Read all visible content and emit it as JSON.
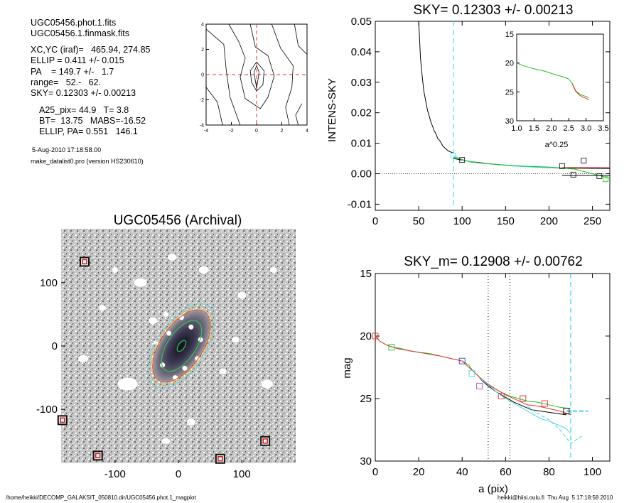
{
  "info": {
    "lines_top": [
      "UGC05456.phot.1.fits",
      "UGC05456.1.finmask.fits"
    ],
    "lines_fit": [
      "XC,YC (iraf)=   465.94, 274.85",
      "ELLIP = 0.411 +/- 0.015",
      "PA    = 149.7 +/-   1.7",
      "range=   52.-   62.",
      "SKY= 0.12303 +/- 0.00213"
    ],
    "lines_gal": [
      "A25_pix= 44.9   T= 3.8",
      "BT=  13.75   MABS=-16.52",
      "ELLIP, PA= 0.551   146.1"
    ],
    "date": "5-Aug-2010 17:18:58.00",
    "program": "make_datalist0.pro (version HS230610)"
  },
  "footer": {
    "left": "/home/heikki/DECOMP_GALAKSIT_050810.dir/UGC05456.phot.1_magplot",
    "right": "heikki@hiisi.oulu.fi  Thu Aug  5 17:18:58 2010"
  },
  "chart_data": [
    {
      "id": "center-contour",
      "type": "line",
      "title": "",
      "xlim": [
        -4,
        4
      ],
      "ylim": [
        -4,
        4
      ],
      "xticks": [
        -4,
        -2,
        0,
        2,
        4
      ],
      "yticks": [
        -4,
        -2,
        0,
        2,
        4
      ],
      "colors": {
        "crosshair": "#e03030",
        "contour": "#000000"
      },
      "contours": [
        [
          [
            0,
            0.7
          ],
          [
            0.2,
            0.2
          ],
          [
            0,
            -1.1
          ],
          [
            -0.2,
            0.2
          ],
          [
            0,
            0.7
          ]
        ],
        [
          [
            0,
            1.0
          ],
          [
            0.6,
            0.3
          ],
          [
            0.5,
            -0.8
          ],
          [
            0,
            -1.3
          ],
          [
            -0.4,
            -0.6
          ],
          [
            -0.5,
            0.3
          ],
          [
            0,
            1.0
          ]
        ],
        [
          [
            -0.5,
            4
          ],
          [
            -0.1,
            2.2
          ],
          [
            0.9,
            1.5
          ],
          [
            1.4,
            -0.1
          ],
          [
            0.9,
            -1.8
          ],
          [
            0.3,
            -2.7
          ],
          [
            -0.9,
            -1.9
          ],
          [
            -1.3,
            -0.2
          ],
          [
            -0.9,
            1.3
          ],
          [
            -1.4,
            2.6
          ],
          [
            -2.2,
            4
          ]
        ],
        [
          [
            -4,
            3.6
          ],
          [
            -2.6,
            2.4
          ],
          [
            -2.4,
            0.3
          ],
          [
            -2.1,
            -1.8
          ],
          [
            -1.3,
            -4
          ]
        ],
        [
          [
            -4,
            -1.0
          ],
          [
            -3.1,
            -2.2
          ],
          [
            -2.7,
            -4
          ]
        ],
        [
          [
            1.2,
            4
          ],
          [
            1.9,
            2.1
          ],
          [
            2.9,
            0.7
          ],
          [
            2.8,
            -1.0
          ],
          [
            2.3,
            -2.6
          ],
          [
            2.6,
            -4
          ]
        ],
        [
          [
            3.0,
            4
          ],
          [
            3.3,
            2.3
          ],
          [
            4,
            1.6
          ]
        ],
        [
          [
            3.6,
            -2.3
          ],
          [
            3.1,
            -3.2
          ],
          [
            3.3,
            -4
          ]
        ]
      ]
    },
    {
      "id": "sky-profile",
      "type": "line",
      "title": "SKY= 0.12303 +/- 0.00213",
      "xlabel": "",
      "ylabel": "INTENS-SKY",
      "xlim": [
        0,
        270
      ],
      "ylim": [
        -0.012,
        0.05
      ],
      "xticks": [
        0,
        50,
        100,
        150,
        200,
        250
      ],
      "yticks": [
        -0.01,
        0.0,
        0.01,
        0.02,
        0.03,
        0.04,
        0.05
      ],
      "ytick_labels": [
        "-0.01",
        "0.00",
        "0.01",
        "0.02",
        "0.03",
        "0.04",
        "0.05"
      ],
      "sky_vline_x": 90,
      "colors": {
        "main": "#000000",
        "cyan": "#40d8e8",
        "green": "#20c020",
        "red": "#e03030",
        "vline": "#60e0f0"
      },
      "series": [
        {
          "color": "main",
          "x": [
            50,
            52,
            54,
            56,
            58,
            60,
            62,
            64,
            66,
            68,
            70,
            72,
            74,
            76,
            78,
            80,
            82,
            84,
            86,
            88,
            90
          ],
          "y": [
            0.05,
            0.038,
            0.032,
            0.027,
            0.024,
            0.021,
            0.019,
            0.017,
            0.0155,
            0.014,
            0.013,
            0.0115,
            0.011,
            0.01,
            0.009,
            0.0085,
            0.008,
            0.0075,
            0.0072,
            0.007,
            0.0068
          ]
        },
        {
          "color": "main",
          "x": [
            90,
            110,
            130,
            150,
            170,
            190,
            210,
            230,
            270
          ],
          "y": [
            0.005,
            0.004,
            0.0033,
            0.0028,
            0.0024,
            0.0021,
            0.0019,
            0.0018,
            0.0017
          ]
        },
        {
          "color": "cyan",
          "x": [
            90,
            100,
            120,
            140,
            160,
            180,
            200,
            215
          ],
          "y": [
            0.006,
            0.0045,
            0.0035,
            0.003,
            0.0025,
            0.0022,
            0.002,
            0.0019
          ]
        },
        {
          "color": "green",
          "x": [
            90,
            110,
            140,
            170,
            200,
            230,
            270
          ],
          "y": [
            0.0055,
            0.0038,
            0.003,
            0.0025,
            0.0022,
            0.0015,
            -0.0015
          ]
        },
        {
          "color": "red",
          "x": [
            215,
            270
          ],
          "y": [
            0.002,
            0.002
          ]
        },
        {
          "color": "main",
          "x": [
            215,
            270
          ],
          "y": [
            -0.0005,
            -0.0005
          ]
        }
      ],
      "squares": [
        [
          90,
          0.006,
          "cyan"
        ],
        [
          100,
          0.0045,
          "main"
        ],
        [
          215,
          0.0025,
          "main"
        ],
        [
          240,
          0.0043,
          "main"
        ],
        [
          258,
          -0.0008,
          "main"
        ],
        [
          265,
          -0.0018,
          "green"
        ],
        [
          228,
          -0.0003,
          "main"
        ]
      ],
      "inset": {
        "xlabel": "a^0.25",
        "xlim": [
          1.0,
          3.5
        ],
        "ylim": [
          15,
          30
        ],
        "xticks": [
          1.0,
          1.5,
          2.0,
          2.5,
          3.0,
          3.5
        ],
        "xtick_labels": [
          "1.0",
          "1.5",
          "2.0",
          "2.5",
          "3.0",
          "3.5"
        ],
        "yticks": [
          15,
          20,
          25,
          30
        ],
        "series": [
          {
            "color": "green",
            "x": [
              1.0,
              1.2,
              1.5,
              1.8,
              2.1,
              2.4,
              2.5,
              2.6,
              2.7,
              2.8,
              2.9,
              3.0,
              3.08
            ],
            "y": [
              20.0,
              20.5,
              21.0,
              21.4,
              22.0,
              22.5,
              22.8,
              23.5,
              24.8,
              25.3,
              25.6,
              25.8,
              26.0
            ]
          },
          {
            "color": "red",
            "x": [
              2.6,
              2.7,
              2.8,
              2.9,
              3.0,
              3.08
            ],
            "y": [
              23.6,
              24.9,
              25.5,
              25.9,
              26.1,
              26.4
            ]
          }
        ]
      }
    },
    {
      "id": "galaxy-image",
      "type": "scatter",
      "title": "UGC05456 (Archival)",
      "xlim": [
        -185,
        185
      ],
      "ylim": [
        -185,
        185
      ],
      "xticks": [
        -100,
        0,
        100
      ],
      "yticks": [
        -100,
        0,
        100
      ],
      "ellipses": [
        {
          "a": 76,
          "b": 38,
          "pa": 56,
          "color": "#40d8e8",
          "dash": true
        },
        {
          "a": 71,
          "b": 36,
          "pa": 56,
          "color": "#e8a040",
          "dash": true
        },
        {
          "a": 65,
          "b": 33,
          "pa": 56,
          "color": "#d06020",
          "dash": false
        },
        {
          "a": 46,
          "b": 22,
          "pa": 56,
          "color": "#30c060",
          "dash": false
        },
        {
          "a": 10,
          "b": 5,
          "pa": 56,
          "color": "#30c060",
          "dash": false
        }
      ],
      "marked_squares": [
        [
          -148,
          133
        ],
        [
          -183,
          -117
        ],
        [
          -127,
          -173
        ],
        [
          66,
          -178
        ],
        [
          137,
          -150
        ]
      ]
    },
    {
      "id": "mag-profile",
      "type": "line",
      "title": "SKY_m=  0.12908 +/- 0.00762",
      "xlabel": "a (pix)",
      "ylabel": "mag",
      "xlim": [
        0,
        108
      ],
      "ylim": [
        30,
        15
      ],
      "y_inverted": true,
      "xticks": [
        0,
        20,
        40,
        60,
        80,
        100
      ],
      "yticks": [
        15,
        20,
        25,
        30
      ],
      "vlines_dotted": [
        52,
        62
      ],
      "vline_dashed": 90,
      "colors": {
        "green": "#20c020",
        "red": "#e03030",
        "black": "#000000",
        "cyan": "#40d8e8",
        "blue": "#4040c0",
        "magenta": "#c040c0"
      },
      "series": [
        {
          "color": "green",
          "x": [
            0,
            2,
            5,
            8,
            12,
            16,
            20,
            25,
            30,
            35,
            40,
            43,
            45,
            48,
            50,
            52,
            55,
            58,
            62,
            66,
            70,
            75,
            80,
            85,
            90
          ],
          "y": [
            20.0,
            20.4,
            20.7,
            20.9,
            21.0,
            21.2,
            21.3,
            21.4,
            21.6,
            21.8,
            22.0,
            22.3,
            22.8,
            23.3,
            23.6,
            23.9,
            24.2,
            24.5,
            24.8,
            25.0,
            25.2,
            25.3,
            25.5,
            25.7,
            25.8
          ]
        },
        {
          "color": "red",
          "x": [
            0,
            2,
            5,
            10,
            20,
            30,
            40,
            45,
            50,
            55,
            60,
            65,
            70,
            75,
            80,
            85,
            90
          ],
          "y": [
            20.0,
            20.4,
            20.7,
            21.0,
            21.3,
            21.6,
            22.0,
            22.8,
            23.6,
            24.2,
            24.7,
            25.1,
            25.5,
            25.6,
            25.8,
            26.0,
            26.3
          ]
        },
        {
          "color": "black",
          "x": [
            48,
            52,
            56,
            60,
            64,
            68,
            72,
            76,
            80,
            84,
            88
          ],
          "y": [
            23.4,
            24.0,
            24.5,
            24.9,
            25.3,
            25.6,
            25.9,
            26.0,
            26.1,
            26.2,
            26.3
          ]
        },
        {
          "color": "cyan",
          "x": [
            48,
            52,
            56,
            60,
            64,
            68,
            72,
            76,
            80,
            84,
            88,
            90
          ],
          "y": [
            23.4,
            23.9,
            24.5,
            25.0,
            25.4,
            25.8,
            26.2,
            26.6,
            26.8,
            27.1,
            27.4,
            27.8
          ]
        }
      ],
      "cyan_dashed": {
        "x": [
          70,
          75,
          80,
          85,
          90,
          95
        ],
        "y": [
          25.6,
          26.2,
          26.7,
          27.5,
          28.6,
          28.0
        ]
      },
      "cyan_flat": {
        "x": [
          88,
          98
        ],
        "y": [
          26.0,
          26.0
        ]
      },
      "squares": [
        [
          0,
          20.0,
          "red"
        ],
        [
          7.5,
          20.9,
          "green"
        ],
        [
          40,
          22.0,
          "blue"
        ],
        [
          44.5,
          23.0,
          "cyan"
        ],
        [
          48,
          24.0,
          "magenta"
        ],
        [
          58,
          24.8,
          "red"
        ],
        [
          68,
          25.0,
          "red"
        ],
        [
          78,
          25.4,
          "red"
        ],
        [
          88,
          26.0,
          "black"
        ]
      ]
    }
  ]
}
